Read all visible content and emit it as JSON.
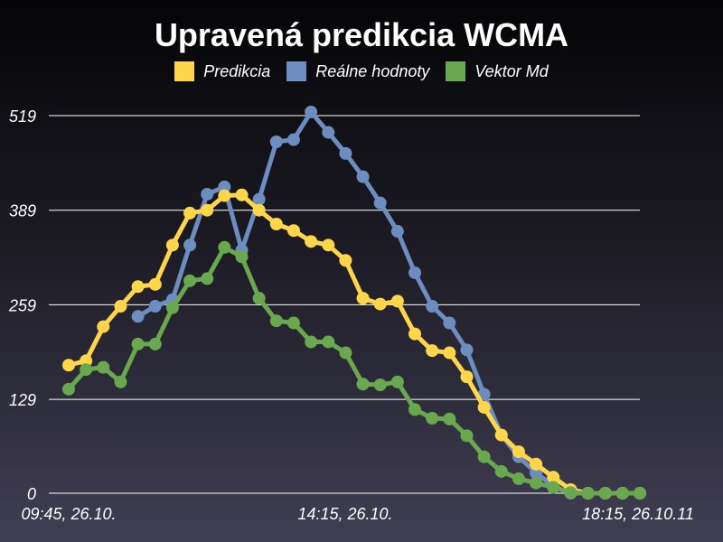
{
  "chart_data": {
    "type": "line",
    "title": "Upravená predikcia WCMA",
    "xlabel": "",
    "ylabel": "",
    "ylim": [
      0,
      519
    ],
    "y_ticks": [
      0,
      129,
      259,
      389,
      519
    ],
    "x_tick_labels": [
      "09:45, 26.10.",
      "14:15, 26.10.",
      "18:15, 26.10.11"
    ],
    "grid": true,
    "legend_position": "top",
    "series": [
      {
        "name": "Predikcia",
        "color": "#ffd54a",
        "values": [
          176,
          182,
          229,
          257,
          284,
          287,
          341,
          385,
          389,
          409,
          410,
          389,
          370,
          361,
          346,
          341,
          320,
          268,
          260,
          264,
          219,
          196,
          193,
          160,
          118,
          80,
          57,
          40,
          22,
          5,
          0,
          0,
          0,
          0
        ]
      },
      {
        "name": "Reálne hodnoty",
        "color": "#6d8cc0",
        "values": [
          null,
          null,
          null,
          null,
          243,
          257,
          266,
          341,
          411,
          421,
          334,
          404,
          483,
          486,
          524,
          496,
          467,
          435,
          399,
          360,
          303,
          257,
          234,
          197,
          136,
          80,
          50,
          28,
          10,
          0,
          0,
          0,
          0,
          0
        ]
      },
      {
        "name": "Vektor Md",
        "color": "#6aa84f",
        "values": [
          143,
          170,
          173,
          153,
          205,
          205,
          255,
          292,
          295,
          338,
          325,
          268,
          237,
          234,
          208,
          208,
          193,
          150,
          149,
          153,
          115,
          103,
          102,
          79,
          50,
          30,
          20,
          14,
          8,
          1,
          0,
          0,
          0,
          0
        ]
      }
    ]
  }
}
